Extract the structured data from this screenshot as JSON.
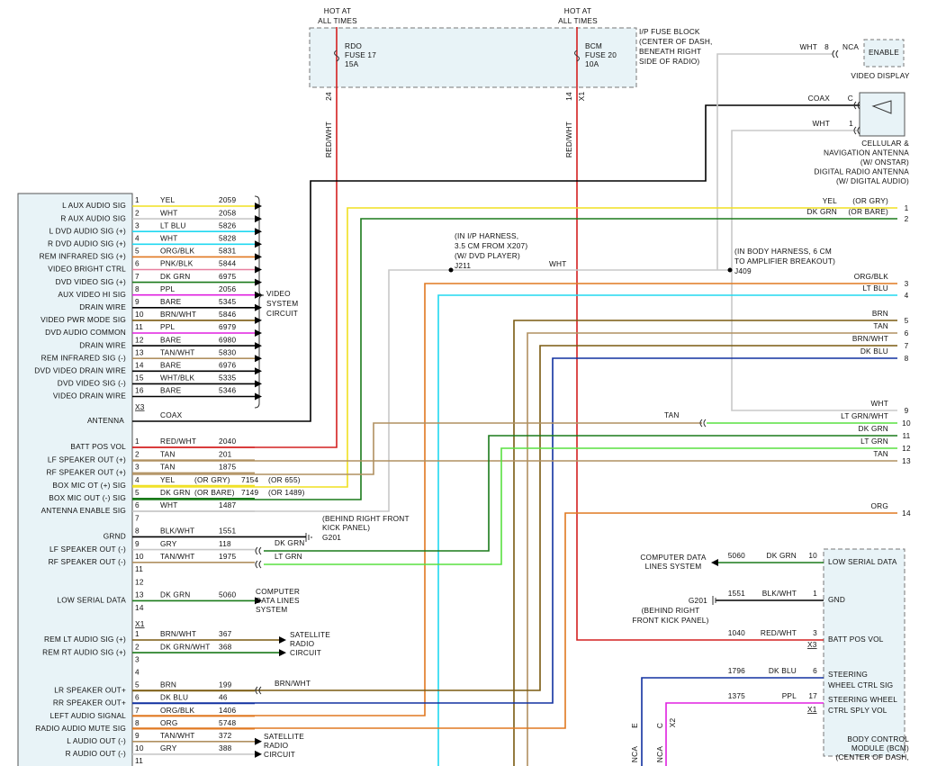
{
  "top": {
    "hot_left": [
      "HOT AT",
      "ALL TIMES"
    ],
    "hot_right": [
      "HOT AT",
      "ALL TIMES"
    ],
    "fuse_left": [
      "RDO",
      "FUSE 17",
      "15A"
    ],
    "fuse_right": [
      "BCM",
      "FUSE 20",
      "10A"
    ],
    "fuse_block": [
      "I/P FUSE BLOCK",
      "(CENTER OF DASH,",
      "BENEATH RIGHT",
      "SIDE OF RADIO)"
    ],
    "pin_left": "24",
    "pin_right": "14",
    "conn_right": "X1",
    "wire_left": "RED/WHT",
    "wire_right": "RED/WHT"
  },
  "video_display": {
    "wire": "WHT",
    "pin": "8",
    "nca": "NCA",
    "box": "ENABLE",
    "label": "VIDEO DISPLAY"
  },
  "antenna": {
    "coax": "COAX",
    "coax_pin": "C",
    "wht": "WHT",
    "wht_pin": "1",
    "label": [
      "CELLULAR &",
      "NAVIGATION ANTENNA",
      "(W/ ONSTAR)",
      "DIGITAL RADIO ANTENNA",
      "(W/ DIGITAL AUDIO)"
    ]
  },
  "splices": {
    "j211": [
      "(IN I/P HARNESS,",
      "3.5 CM FROM X207)",
      "(W/ DVD PLAYER)",
      "J211"
    ],
    "j211_wire": "WHT",
    "j409": [
      "(IN BODY HARNESS, 6 CM",
      "TO AMPLIFIER BREAKOUT)",
      "J409"
    ],
    "tan": "TAN"
  },
  "right_wires": [
    {
      "wire": "YEL",
      "alt": "(OR GRY)",
      "pin": "1"
    },
    {
      "wire": "DK GRN",
      "alt": "(OR BARE)",
      "pin": "2"
    },
    {
      "wire": "ORG/BLK",
      "pin": "3"
    },
    {
      "wire": "LT BLU",
      "pin": "4"
    },
    {
      "wire": "BRN",
      "pin": "5"
    },
    {
      "wire": "TAN",
      "pin": "6"
    },
    {
      "wire": "BRN/WHT",
      "pin": "7"
    },
    {
      "wire": "DK BLU",
      "pin": "8"
    },
    {
      "wire": "WHT",
      "pin": "9"
    },
    {
      "wire": "LT GRN/WHT",
      "pin": "10"
    },
    {
      "wire": "DK GRN",
      "pin": "11"
    },
    {
      "wire": "LT GRN",
      "pin": "12"
    },
    {
      "wire": "TAN",
      "pin": "13"
    },
    {
      "wire": "ORG",
      "pin": "14"
    }
  ],
  "radio": {
    "connectors": [
      {
        "name": "X3",
        "pins": [
          {
            "pin": "1",
            "label": "L AUX AUDIO SIG",
            "wire": "YEL",
            "circuit": "2059"
          },
          {
            "pin": "2",
            "label": "R AUX AUDIO SIG",
            "wire": "WHT",
            "circuit": "2058"
          },
          {
            "pin": "3",
            "label": "L DVD AUDIO SIG (+)",
            "wire": "LT BLU",
            "circuit": "5826"
          },
          {
            "pin": "4",
            "label": "R DVD AUDIO SIG (+)",
            "wire": "WHT",
            "circuit": "5828"
          },
          {
            "pin": "5",
            "label": "REM INFRARED SIG (+)",
            "wire": "ORG/BLK",
            "circuit": "5831"
          },
          {
            "pin": "6",
            "label": "VIDEO BRIGHT CTRL",
            "wire": "PNK/BLK",
            "circuit": "5844"
          },
          {
            "pin": "7",
            "label": "DVD VIDEO SIG (+)",
            "wire": "DK GRN",
            "circuit": "6975"
          },
          {
            "pin": "8",
            "label": "AUX VIDEO HI SIG",
            "wire": "PPL",
            "circuit": "2056"
          },
          {
            "pin": "9",
            "label": "DRAIN WIRE",
            "wire": "BARE",
            "circuit": "5345"
          },
          {
            "pin": "10",
            "label": "VIDEO PWR MODE SIG",
            "wire": "BRN/WHT",
            "circuit": "5846"
          },
          {
            "pin": "11",
            "label": "DVD AUDIO COMMON",
            "wire": "PPL",
            "circuit": "6979"
          },
          {
            "pin": "12",
            "label": "DRAIN WIRE",
            "wire": "BARE",
            "circuit": "6980"
          },
          {
            "pin": "13",
            "label": "REM INFRARED SIG (-)",
            "wire": "TAN/WHT",
            "circuit": "5830"
          },
          {
            "pin": "14",
            "label": "DVD VIDEO DRAIN WIRE",
            "wire": "BARE",
            "circuit": "6976"
          },
          {
            "pin": "15",
            "label": "DVD VIDEO SIG (-)",
            "wire": "WHT/BLK",
            "circuit": "5335"
          },
          {
            "pin": "16",
            "label": "VIDEO DRAIN WIRE",
            "wire": "BARE",
            "circuit": "5346"
          }
        ]
      },
      {
        "name": "X1",
        "pins": [
          {
            "pin": "1",
            "label": "BATT POS VOL",
            "wire": "RED/WHT",
            "circuit": "2040"
          },
          {
            "pin": "2",
            "label": "LF SPEAKER OUT (+)",
            "wire": "TAN",
            "circuit": "201"
          },
          {
            "pin": "3",
            "label": "RF SPEAKER OUT (+)",
            "wire": "TAN",
            "circuit": "1875"
          },
          {
            "pin": "4",
            "label": "BOX MIC OT (+) SIG",
            "wire": "YEL",
            "wire_alt": "(OR GRY)",
            "circuit": "7154",
            "circuit_alt": "(OR 655)"
          },
          {
            "pin": "5",
            "label": "BOX MIC OUT (-) SIG",
            "wire": "DK GRN",
            "wire_alt": "(OR BARE)",
            "circuit": "7149",
            "circuit_alt": "(OR 1489)"
          },
          {
            "pin": "6",
            "label": "ANTENNA ENABLE SIG",
            "wire": "WHT",
            "circuit": "1487"
          },
          {
            "pin": "7"
          },
          {
            "pin": "8",
            "label": "GRND",
            "wire": "BLK/WHT",
            "circuit": "1551"
          },
          {
            "pin": "9",
            "label": "LF SPEAKER OUT (-)",
            "wire": "GRY",
            "circuit": "118"
          },
          {
            "pin": "10",
            "label": "RF SPEAKER OUT (-)",
            "wire": "TAN/WHT",
            "circuit": "1975"
          },
          {
            "pin": "11"
          },
          {
            "pin": "12"
          },
          {
            "pin": "13",
            "label": "LOW SERIAL DATA",
            "wire": "DK GRN",
            "circuit": "5060"
          },
          {
            "pin": "14"
          }
        ]
      },
      {
        "pins": [
          {
            "pin": "1",
            "label": "REM LT AUDIO SIG (+)",
            "wire": "BRN/WHT",
            "circuit": "367"
          },
          {
            "pin": "2",
            "label": "REM RT AUDIO SIG (+)",
            "wire": "DK GRN/WHT",
            "circuit": "368"
          },
          {
            "pin": "3"
          },
          {
            "pin": "4"
          },
          {
            "pin": "5",
            "label": "LR SPEAKER OUT+",
            "wire": "BRN",
            "circuit": "199"
          },
          {
            "pin": "6",
            "label": "RR SPEAKER OUT+",
            "wire": "DK BLU",
            "circuit": "46"
          },
          {
            "pin": "7",
            "label": "LEFT AUDIO SIGNAL",
            "wire": "ORG/BLK",
            "circuit": "1406"
          },
          {
            "pin": "8",
            "label": "RADIO AUDIO MUTE SIG",
            "wire": "ORG",
            "circuit": "5748"
          },
          {
            "pin": "9",
            "label": "L AUDIO OUT (-)",
            "wire": "TAN/WHT",
            "circuit": "372"
          },
          {
            "pin": "10",
            "label": "R AUDIO OUT (-)",
            "wire": "GRY",
            "circuit": "388"
          },
          {
            "pin": "11"
          }
        ]
      }
    ],
    "antenna_label": "ANTENNA",
    "coax": "COAX",
    "video_circuit": [
      "VIDEO",
      "SYSTEM",
      "CIRCUIT"
    ],
    "sat_radio_1": [
      "SATELLITE",
      "RADIO",
      "CIRCUIT"
    ],
    "sat_radio_2": [
      "SATELLITE",
      "RADIO",
      "CIRCUIT"
    ],
    "computer": [
      "COMPUTER",
      "DATA LINES",
      "SYSTEM"
    ],
    "ground": [
      "(BEHIND RIGHT FRONT",
      "KICK PANEL)",
      "G201"
    ],
    "pin9_wire": "DK GRN",
    "pin10_wire": "LT GRN",
    "pin5_wire": "BRN/WHT"
  },
  "bcm": {
    "pins": [
      {
        "label": [
          "LOW SERIAL DATA"
        ],
        "pin": "10",
        "wire": "DK GRN",
        "circuit": "5060"
      },
      {
        "label": [
          "GND"
        ],
        "pin": "1",
        "wire": "BLK/WHT",
        "circuit": "1551"
      },
      {
        "label": [
          "BATT POS VOL"
        ],
        "pin": "3",
        "wire": "RED/WHT",
        "circuit": "1040"
      },
      {
        "label": [
          "STEERING",
          "WHEEL CTRL SIG"
        ],
        "pin": "6",
        "wire": "DK BLU",
        "circuit": "1796"
      },
      {
        "label": [
          "STEERING WHEEL",
          "CTRL SPLY VOL"
        ],
        "pin": "17",
        "wire": "PPL",
        "circuit": "1375"
      }
    ],
    "x3": "X3",
    "x1": "X1",
    "label": [
      "BODY CONTROL",
      "MODULE (BCM)",
      "(CENTER OF DASH,"
    ],
    "computer": [
      "COMPUTER DATA",
      "LINES SYSTEM"
    ],
    "ground": [
      "G201",
      "(BEHIND RIGHT",
      "FRONT KICK PANEL)"
    ],
    "pin_e": "E",
    "pin_c": "C",
    "x2": "X2",
    "nca_1": "NCA",
    "nca_2": "NCA"
  }
}
